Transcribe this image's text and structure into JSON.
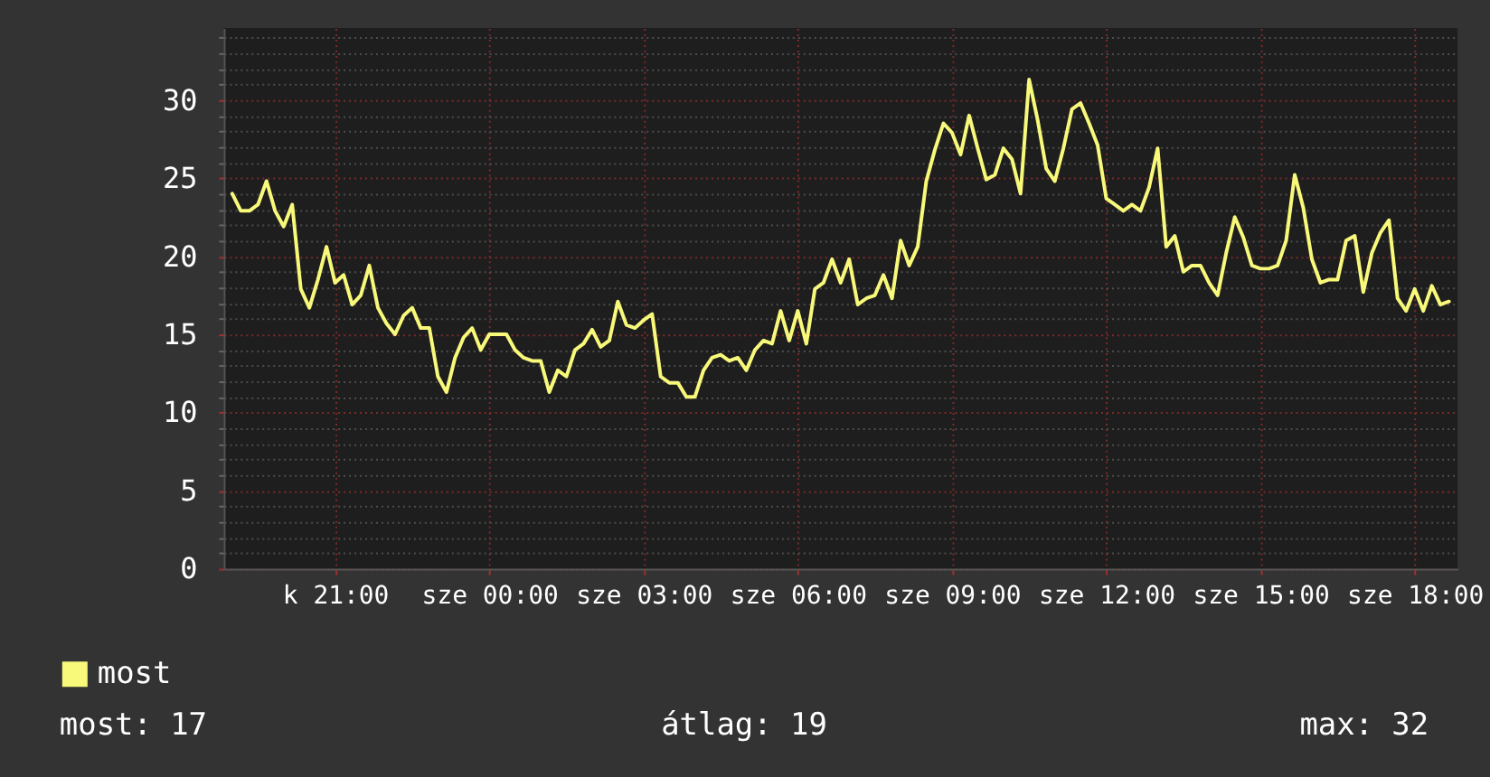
{
  "chart_data": {
    "type": "line",
    "categories": [
      null,
      null,
      null,
      null,
      null,
      null,
      null,
      null,
      null,
      null,
      null,
      null,
      "k 21:00",
      null,
      null,
      null,
      null,
      null,
      null,
      null,
      null,
      null,
      null,
      null,
      null,
      null,
      null,
      null,
      null,
      null,
      "sze 00:00",
      null,
      null,
      null,
      null,
      null,
      null,
      null,
      null,
      null,
      null,
      null,
      null,
      null,
      null,
      null,
      null,
      null,
      "sze 03:00",
      null,
      null,
      null,
      null,
      null,
      null,
      null,
      null,
      null,
      null,
      null,
      null,
      null,
      null,
      null,
      null,
      null,
      "sze 06:00",
      null,
      null,
      null,
      null,
      null,
      null,
      null,
      null,
      null,
      null,
      null,
      null,
      null,
      null,
      null,
      null,
      null,
      "sze 09:00",
      null,
      null,
      null,
      null,
      null,
      null,
      null,
      null,
      null,
      null,
      null,
      null,
      null,
      null,
      null,
      null,
      null,
      "sze 12:00",
      null,
      null,
      null,
      null,
      null,
      null,
      null,
      null,
      null,
      null,
      null,
      null,
      null,
      null,
      null,
      null,
      null,
      "sze 15:00",
      null,
      null,
      null,
      null,
      null,
      null,
      null,
      null,
      null,
      null,
      null,
      null,
      null,
      null,
      null,
      null,
      null,
      "sze 18:00",
      null,
      null,
      null,
      null
    ],
    "series": [
      {
        "name": "most",
        "color": "#f8f87a",
        "values": [
          24.0,
          22.9,
          22.9,
          23.3,
          24.8,
          22.9,
          21.9,
          23.3,
          17.9,
          16.7,
          18.5,
          20.6,
          18.3,
          18.8,
          16.9,
          17.5,
          19.4,
          16.7,
          15.7,
          15.0,
          16.2,
          16.7,
          15.4,
          15.4,
          12.3,
          11.3,
          13.5,
          14.8,
          15.4,
          14.0,
          15.0,
          15.0,
          15.0,
          14.0,
          13.5,
          13.3,
          13.3,
          11.3,
          12.7,
          12.3,
          14.0,
          14.4,
          15.3,
          14.2,
          14.6,
          17.1,
          15.6,
          15.4,
          15.9,
          16.3,
          12.3,
          11.9,
          11.9,
          11.0,
          11.0,
          12.7,
          13.5,
          13.7,
          13.3,
          13.5,
          12.7,
          14.0,
          14.6,
          14.4,
          16.5,
          14.6,
          16.5,
          14.4,
          17.9,
          18.3,
          19.8,
          18.3,
          19.8,
          16.9,
          17.3,
          17.5,
          18.8,
          17.3,
          21.0,
          19.4,
          20.6,
          24.8,
          26.8,
          28.5,
          27.9,
          26.5,
          29.0,
          26.9,
          24.9,
          25.2,
          26.9,
          26.2,
          24.0,
          31.3,
          28.7,
          25.6,
          24.8,
          26.9,
          29.4,
          29.8,
          28.5,
          27.1,
          23.7,
          23.3,
          22.9,
          23.3,
          22.9,
          24.4,
          26.9,
          20.6,
          21.3,
          19.0,
          19.4,
          19.4,
          18.3,
          17.5,
          20.2,
          22.5,
          21.2,
          19.4,
          19.2,
          19.2,
          19.4,
          21.0,
          25.2,
          23.1,
          19.8,
          18.3,
          18.5,
          18.5,
          21.0,
          21.3,
          17.7,
          20.2,
          21.5,
          22.3,
          17.3,
          16.5,
          17.9,
          16.5,
          18.1,
          16.9,
          17.1
        ]
      }
    ],
    "ylim": [
      0,
      34.6
    ],
    "yticks": [
      0,
      {
        "value": 1,
        "label": null
      },
      {
        "value": 2,
        "label": null
      },
      {
        "value": 3,
        "label": null
      },
      {
        "value": 4,
        "label": null
      },
      5,
      {
        "value": 6,
        "label": null
      },
      {
        "value": 7,
        "label": null
      },
      {
        "value": 8,
        "label": null
      },
      {
        "value": 9,
        "label": null
      },
      10,
      {
        "value": 11,
        "label": null
      },
      {
        "value": 12,
        "label": null
      },
      {
        "value": 13,
        "label": null
      },
      {
        "value": 14,
        "label": null
      },
      15,
      {
        "value": 16,
        "label": null
      },
      {
        "value": 17,
        "label": null
      },
      {
        "value": 18,
        "label": null
      },
      {
        "value": 19,
        "label": null
      },
      20,
      {
        "value": 21,
        "label": null
      },
      {
        "value": 22,
        "label": null
      },
      {
        "value": 23,
        "label": null
      },
      {
        "value": 24,
        "label": null
      },
      25,
      {
        "value": 26,
        "label": null
      },
      {
        "value": 27,
        "label": null
      },
      {
        "value": 28,
        "label": null
      },
      {
        "value": 29,
        "label": null
      },
      30,
      {
        "value": 31,
        "label": null
      },
      {
        "value": 32,
        "label": null
      },
      {
        "value": 33,
        "label": null
      },
      {
        "value": 34,
        "label": null
      }
    ],
    "grid": true,
    "legend": "bottom left",
    "annotations": [
      "most: 17",
      "átlag: 19",
      "max: 32"
    ]
  }
}
